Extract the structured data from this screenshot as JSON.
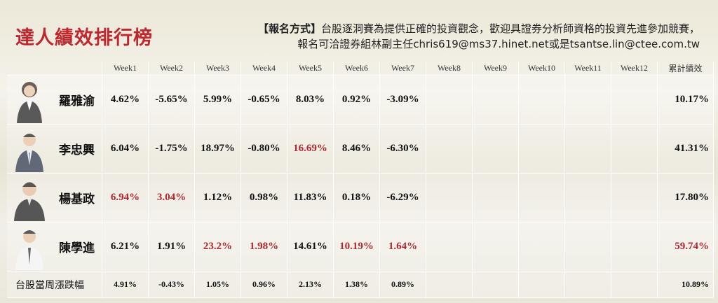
{
  "header": {
    "title": "達人績效排行榜",
    "notice_label": "【報名方式】",
    "notice_lines": [
      "台股逐洞賽為提供正確的投資觀念，歡迎具證券分析師資格的投資先進參加競賽，",
      "報名可洽證券組林副主任chris619@ms37.hinet.net或是tsantse.lin@ctee.com.tw"
    ]
  },
  "table": {
    "columns": [
      "Week1",
      "Week2",
      "Week3",
      "Week4",
      "Week5",
      "Week6",
      "Week7",
      "Week8",
      "Week9",
      "Week10",
      "Week11",
      "Week12",
      "累計績效"
    ],
    "rows": [
      {
        "name": "羅雅渝",
        "cells": [
          "4.62%",
          "-5.65%",
          "5.99%",
          "-0.65%",
          "8.03%",
          "0.92%",
          "-3.09%"
        ],
        "total": "10.17%"
      },
      {
        "name": "李忠興",
        "cells": [
          "6.04%",
          "-1.75%",
          "18.97%",
          "-0.80%",
          {
            "text": "16.69%",
            "color": "#b3262c"
          },
          "8.46%",
          "-6.30%"
        ],
        "total": "41.31%"
      },
      {
        "name": "楊基政",
        "cells": [
          {
            "text": "6.94%",
            "color": "#b3262c"
          },
          {
            "text": "3.04%",
            "color": "#b3262c"
          },
          "1.12%",
          "0.98%",
          "11.83%",
          "0.18%",
          "-6.29%"
        ],
        "total": "17.80%"
      },
      {
        "name": "陳學進",
        "cells": [
          "6.21%",
          "1.91%",
          {
            "text": "23.2%",
            "color": "#b3262c"
          },
          {
            "text": "1.98%",
            "color": "#b3262c"
          },
          "14.61%",
          {
            "text": "10.19%",
            "color": "#b3262c"
          },
          {
            "text": "1.64%",
            "color": "#b3262c"
          }
        ],
        "total": {
          "text": "59.74%",
          "color": "#b3262c"
        }
      }
    ],
    "footer": {
      "name": "台股當周漲跌幅",
      "cells": [
        "4.91%",
        "-0.43%",
        "1.05%",
        "0.96%",
        "2.13%",
        "1.38%",
        "0.89%"
      ],
      "total": "10.89%"
    }
  }
}
